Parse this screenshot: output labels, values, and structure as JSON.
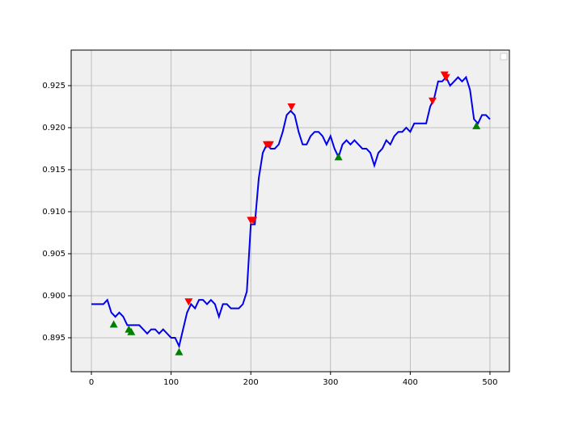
{
  "chart_data": {
    "type": "line",
    "xlim": [
      -25.4,
      524.4
    ],
    "ylim": [
      0.89096,
      0.92923
    ],
    "xticks": [
      0,
      100,
      200,
      300,
      400,
      500
    ],
    "yticks": [
      0.895,
      {
        "value": 0.9,
        "label": "0.900"
      },
      0.905,
      {
        "value": 0.91,
        "label": "0.910"
      },
      0.915,
      {
        "value": 0.92,
        "label": "0.920"
      },
      0.925
    ],
    "grid": true,
    "series": [
      {
        "color": "#0000ee",
        "marker": "line",
        "x": [
          0,
          5,
          10,
          15,
          20,
          25,
          30,
          35,
          40,
          45,
          50,
          55,
          60,
          65,
          70,
          75,
          80,
          85,
          90,
          95,
          100,
          105,
          110,
          115,
          120,
          125,
          130,
          135,
          140,
          145,
          150,
          155,
          160,
          165,
          170,
          175,
          180,
          185,
          190,
          195,
          200,
          205,
          210,
          215,
          220,
          225,
          230,
          235,
          240,
          245,
          250,
          255,
          260,
          265,
          270,
          275,
          280,
          285,
          290,
          295,
          300,
          305,
          310,
          315,
          320,
          325,
          330,
          335,
          340,
          345,
          350,
          355,
          360,
          365,
          370,
          375,
          380,
          385,
          390,
          395,
          400,
          405,
          410,
          415,
          420,
          425,
          430,
          435,
          440,
          445,
          450,
          455,
          460,
          465,
          470,
          475,
          480,
          485,
          490,
          495,
          500
        ],
        "values": [
          0.899,
          0.899,
          0.899,
          0.899,
          0.8995,
          0.898,
          0.8975,
          0.898,
          0.8975,
          0.8965,
          0.8965,
          0.8965,
          0.8965,
          0.896,
          0.8955,
          0.896,
          0.896,
          0.8955,
          0.896,
          0.8955,
          0.895,
          0.895,
          0.894,
          0.896,
          0.898,
          0.899,
          0.8985,
          0.8995,
          0.8995,
          0.899,
          0.8995,
          0.899,
          0.8975,
          0.899,
          0.899,
          0.8985,
          0.8985,
          0.8985,
          0.899,
          0.9005,
          0.9085,
          0.9085,
          0.914,
          0.917,
          0.918,
          0.9175,
          0.9175,
          0.918,
          0.9195,
          0.9215,
          0.922,
          0.9215,
          0.9195,
          0.918,
          0.918,
          0.919,
          0.9195,
          0.9195,
          0.919,
          0.918,
          0.919,
          0.9175,
          0.9165,
          0.918,
          0.9185,
          0.918,
          0.9185,
          0.918,
          0.9175,
          0.9175,
          0.917,
          0.9155,
          0.917,
          0.9175,
          0.9185,
          0.918,
          0.919,
          0.9195,
          0.9195,
          0.92,
          0.9195,
          0.9205,
          0.9205,
          0.9205,
          0.9205,
          0.9225,
          0.9235,
          0.9255,
          0.9255,
          0.926,
          0.925,
          0.9255,
          0.926,
          0.9255,
          0.926,
          0.9245,
          0.921,
          0.9205,
          0.9215,
          0.9215,
          0.921
        ]
      },
      {
        "color": "#008000",
        "marker": "triangle-up",
        "x": [
          28,
          47,
          50,
          110,
          310,
          483
        ],
        "values": [
          0.8966,
          0.896,
          0.8957,
          0.8933,
          0.9165,
          0.9202
        ]
      },
      {
        "color": "#ff0000",
        "marker": "triangle-down",
        "x": [
          122,
          200,
          203,
          220,
          224,
          251,
          428,
          443,
          445
        ],
        "values": [
          0.8993,
          0.909,
          0.909,
          0.918,
          0.918,
          0.9225,
          0.9232,
          0.9263,
          0.926
        ]
      }
    ]
  }
}
